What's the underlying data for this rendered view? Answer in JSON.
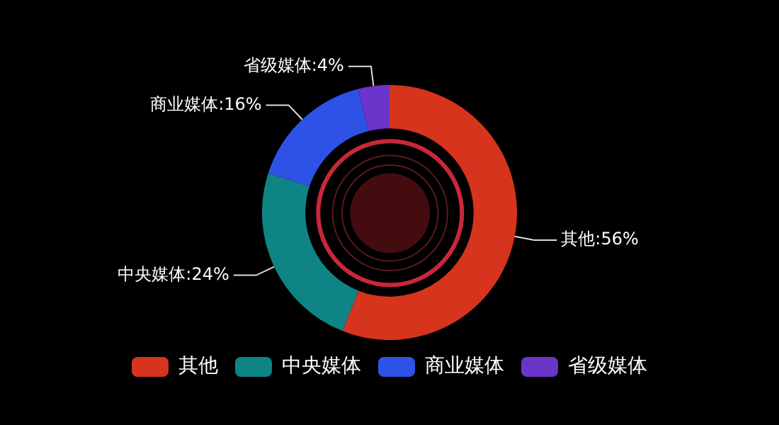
{
  "chart_data": {
    "type": "donut",
    "categories": [
      "其他",
      "中央媒体",
      "商业媒体",
      "省级媒体"
    ],
    "values": [
      56,
      24,
      16,
      4
    ],
    "colors": [
      "#d7341d",
      "#0e8584",
      "#2f52e6",
      "#6a35c8"
    ],
    "value_labels": [
      "其他:56%",
      "中央媒体:24%",
      "商业媒体:16%",
      "省级媒体:4%"
    ],
    "legend": "bottom"
  }
}
